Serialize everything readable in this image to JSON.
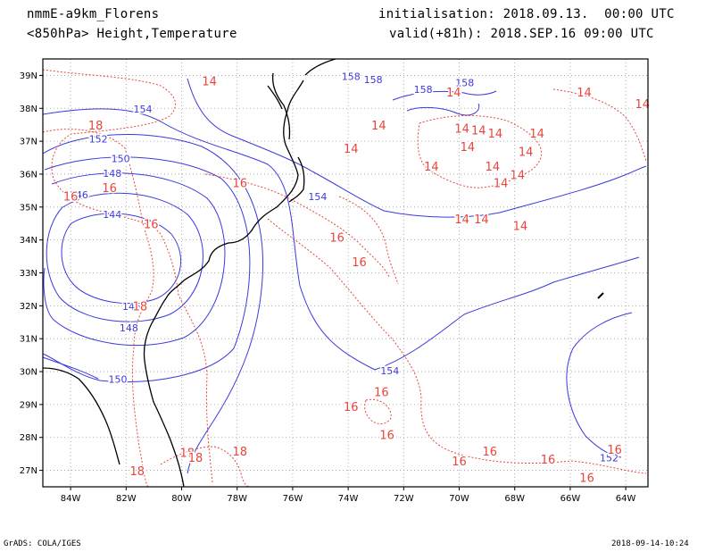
{
  "header": {
    "model": "nmmE-a9km_Florens",
    "field": "<850hPa> Height,Temperature",
    "init": "initialisation: 2018.09.13.  00:00 UTC",
    "valid": "valid(+81h): 2018.SEP.16 09:00 UTC"
  },
  "footer": {
    "credit": "GrADS: COLA/IGES",
    "timestamp": "2018-09-14-10:24"
  },
  "colors": {
    "height_contour": "#3a3adc",
    "temperature_contour": "#e8453c",
    "coastline": "#000000",
    "grid": "#9a9a9a"
  },
  "map": {
    "lon_range": [
      -85,
      -63.2
    ],
    "lat_range": [
      26.5,
      39.5
    ],
    "lon_ticks": [
      -84,
      -82,
      -80,
      -78,
      -76,
      -74,
      -72,
      -70,
      -68,
      -66,
      -64
    ],
    "lat_ticks": [
      27,
      28,
      29,
      30,
      31,
      32,
      33,
      34,
      35,
      36,
      37,
      38,
      39
    ],
    "lon_labels": [
      "84W",
      "82W",
      "80W",
      "78W",
      "76W",
      "74W",
      "72W",
      "70W",
      "68W",
      "66W",
      "64W"
    ],
    "lat_labels": [
      "27N",
      "28N",
      "29N",
      "30N",
      "31N",
      "32N",
      "33N",
      "34N",
      "35N",
      "36N",
      "37N",
      "38N",
      "39N"
    ],
    "height_labels": [
      {
        "text": "158",
        "lon": -73.9,
        "lat": 38.95
      },
      {
        "text": "158",
        "lon": -73.1,
        "lat": 38.85
      },
      {
        "text": "158",
        "lon": -71.3,
        "lat": 38.55
      },
      {
        "text": "158",
        "lon": -69.8,
        "lat": 38.75
      },
      {
        "text": "154",
        "lon": -81.4,
        "lat": 37.95
      },
      {
        "text": "152",
        "lon": -83.0,
        "lat": 37.05
      },
      {
        "text": "150",
        "lon": -82.2,
        "lat": 36.45
      },
      {
        "text": "148",
        "lon": -82.5,
        "lat": 36.0
      },
      {
        "text": "146",
        "lon": -83.7,
        "lat": 35.35
      },
      {
        "text": "144",
        "lon": -82.5,
        "lat": 34.75
      },
      {
        "text": "154",
        "lon": -75.1,
        "lat": 35.3
      },
      {
        "text": "154",
        "lon": -72.5,
        "lat": 30.0
      },
      {
        "text": "148",
        "lon": -81.9,
        "lat": 31.3
      },
      {
        "text": "150",
        "lon": -82.3,
        "lat": 29.75
      },
      {
        "text": "146",
        "lon": -81.8,
        "lat": 31.95
      },
      {
        "text": "152",
        "lon": -64.6,
        "lat": 27.35
      }
    ],
    "temp_labels": [
      {
        "text": "14",
        "lon": -79.0,
        "lat": 38.8
      },
      {
        "text": "14",
        "lon": -70.2,
        "lat": 38.45
      },
      {
        "text": "14",
        "lon": -65.5,
        "lat": 38.45
      },
      {
        "text": "14",
        "lon": -72.9,
        "lat": 37.45
      },
      {
        "text": "14",
        "lon": -73.9,
        "lat": 36.75
      },
      {
        "text": "14",
        "lon": -69.9,
        "lat": 37.35
      },
      {
        "text": "14",
        "lon": -69.3,
        "lat": 37.3
      },
      {
        "text": "14",
        "lon": -68.7,
        "lat": 37.2
      },
      {
        "text": "14",
        "lon": -67.2,
        "lat": 37.2
      },
      {
        "text": "14",
        "lon": -69.7,
        "lat": 36.8
      },
      {
        "text": "14",
        "lon": -67.6,
        "lat": 36.65
      },
      {
        "text": "14",
        "lon": -71.0,
        "lat": 36.2
      },
      {
        "text": "14",
        "lon": -68.8,
        "lat": 36.2
      },
      {
        "text": "14",
        "lon": -67.9,
        "lat": 35.95
      },
      {
        "text": "14",
        "lon": -68.5,
        "lat": 35.7
      },
      {
        "text": "14",
        "lon": -69.9,
        "lat": 34.6
      },
      {
        "text": "14",
        "lon": -69.2,
        "lat": 34.6
      },
      {
        "text": "14",
        "lon": -67.8,
        "lat": 34.4
      },
      {
        "text": "14",
        "lon": -63.4,
        "lat": 38.1
      },
      {
        "text": "18",
        "lon": -83.1,
        "lat": 37.45
      },
      {
        "text": "16",
        "lon": -84.0,
        "lat": 35.3
      },
      {
        "text": "16",
        "lon": -82.6,
        "lat": 35.55
      },
      {
        "text": "16",
        "lon": -81.1,
        "lat": 34.45
      },
      {
        "text": "16",
        "lon": -77.9,
        "lat": 35.7
      },
      {
        "text": "16",
        "lon": -74.4,
        "lat": 34.05
      },
      {
        "text": "16",
        "lon": -73.6,
        "lat": 33.3
      },
      {
        "text": "18",
        "lon": -81.5,
        "lat": 31.95
      },
      {
        "text": "16",
        "lon": -72.8,
        "lat": 29.35
      },
      {
        "text": "16",
        "lon": -73.9,
        "lat": 28.9
      },
      {
        "text": "16",
        "lon": -72.6,
        "lat": 28.05
      },
      {
        "text": "16",
        "lon": -68.9,
        "lat": 27.55
      },
      {
        "text": "16",
        "lon": -66.8,
        "lat": 27.3
      },
      {
        "text": "16",
        "lon": -70.0,
        "lat": 27.25
      },
      {
        "text": "16",
        "lon": -64.4,
        "lat": 27.6
      },
      {
        "text": "16",
        "lon": -65.4,
        "lat": 26.75
      },
      {
        "text": "18",
        "lon": -79.8,
        "lat": 27.5
      },
      {
        "text": "18",
        "lon": -79.5,
        "lat": 27.35
      },
      {
        "text": "18",
        "lon": -77.9,
        "lat": 27.55
      },
      {
        "text": "18",
        "lon": -81.6,
        "lat": 26.95
      }
    ]
  }
}
